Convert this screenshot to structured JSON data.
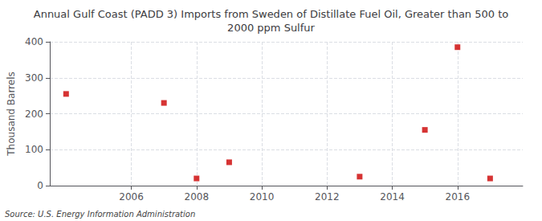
{
  "chart_data": {
    "type": "scatter",
    "title": "Annual Gulf Coast (PADD 3) Imports from Sweden of Distillate Fuel Oil, Greater than 500 to\n2000 ppm Sulfur",
    "ylabel": "Thousand Barrels",
    "annotations": [
      "Source: U.S. Energy Information Administration"
    ],
    "x": [
      2004,
      2007,
      2008,
      2009,
      2013,
      2015,
      2016,
      2017
    ],
    "values": [
      255,
      230,
      20,
      65,
      25,
      155,
      385,
      20
    ],
    "color": "#cc0000",
    "marker": "square",
    "xlim": [
      2003.5,
      2018
    ],
    "xticks": [
      2006,
      2008,
      2010,
      2012,
      2014,
      2016
    ],
    "ylim": [
      0,
      400
    ],
    "yticks": [
      0,
      100,
      200,
      300,
      400
    ],
    "grid": true
  }
}
